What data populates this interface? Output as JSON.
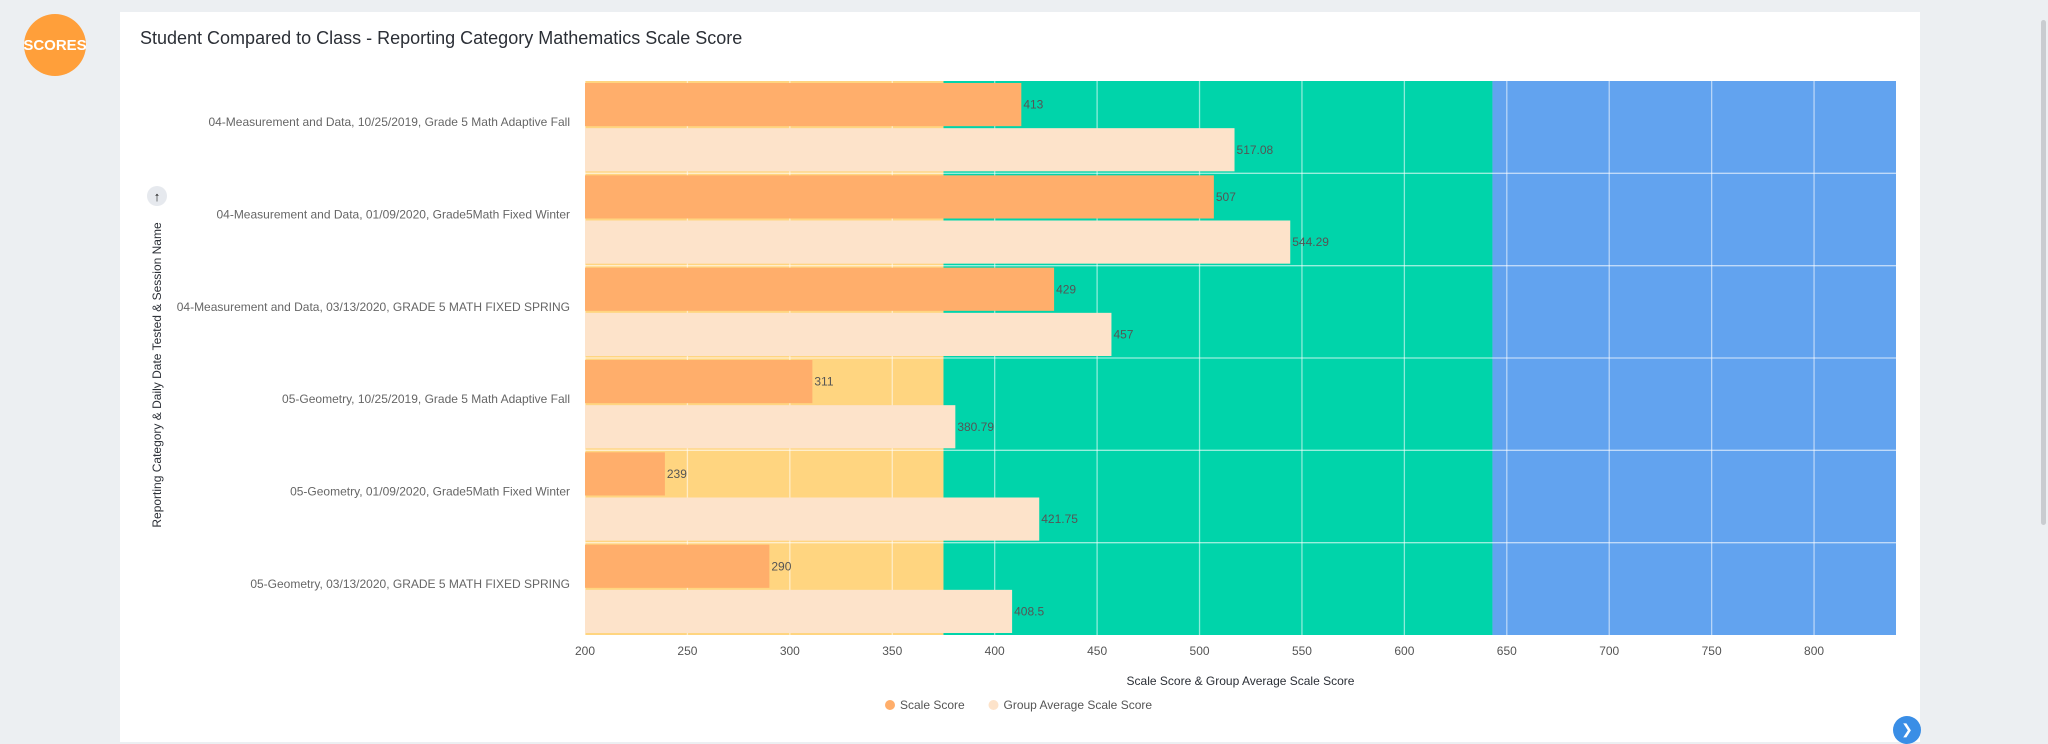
{
  "logo": "SCORES",
  "title": "Student Compared to Class - Reporting Category Mathematics Scale Score",
  "chart_data": {
    "type": "bar",
    "orientation": "horizontal",
    "title": "Student Compared to Class - Reporting Category Mathematics Scale Score",
    "xlabel": "Scale Score & Group Average Scale Score",
    "ylabel": "Reporting Category & Daily Date Tested & Session Name",
    "xlim": [
      200,
      840
    ],
    "xticks": [
      200,
      250,
      300,
      350,
      400,
      450,
      500,
      550,
      600,
      650,
      700,
      750,
      800
    ],
    "grid": true,
    "legend_position": "bottom",
    "background_bands": [
      {
        "from": 200,
        "to": 375,
        "color": "#ffd580"
      },
      {
        "from": 375,
        "to": 643,
        "color": "#00d4aa"
      },
      {
        "from": 643,
        "to": 840,
        "color": "#62a3ef"
      }
    ],
    "categories": [
      "04-Measurement and Data, 10/25/2019, Grade 5 Math Adaptive Fall",
      "04-Measurement and Data, 01/09/2020, Grade5Math Fixed Winter",
      "04-Measurement and Data, 03/13/2020, GRADE 5 MATH FIXED SPRING",
      "05-Geometry, 10/25/2019, Grade 5 Math Adaptive Fall",
      "05-Geometry, 01/09/2020, Grade5Math Fixed Winter",
      "05-Geometry, 03/13/2020, GRADE 5 MATH FIXED SPRING"
    ],
    "series": [
      {
        "name": "Scale Score",
        "color": "#ffae6b",
        "values": [
          413,
          507,
          429,
          311,
          239,
          290
        ],
        "labels": [
          "413",
          "507",
          "429",
          "311",
          "239",
          "290"
        ]
      },
      {
        "name": "Group Average Scale Score",
        "color": "#fde3ca",
        "values": [
          517.08,
          544.29,
          457,
          380.79,
          421.75,
          408.5
        ],
        "labels": [
          "517.08",
          "544.29",
          "457",
          "380.79",
          "421.75",
          "408.5"
        ]
      }
    ]
  },
  "icons": {
    "sort": "arrow-up-icon",
    "fab": "chevron-right-icon"
  }
}
